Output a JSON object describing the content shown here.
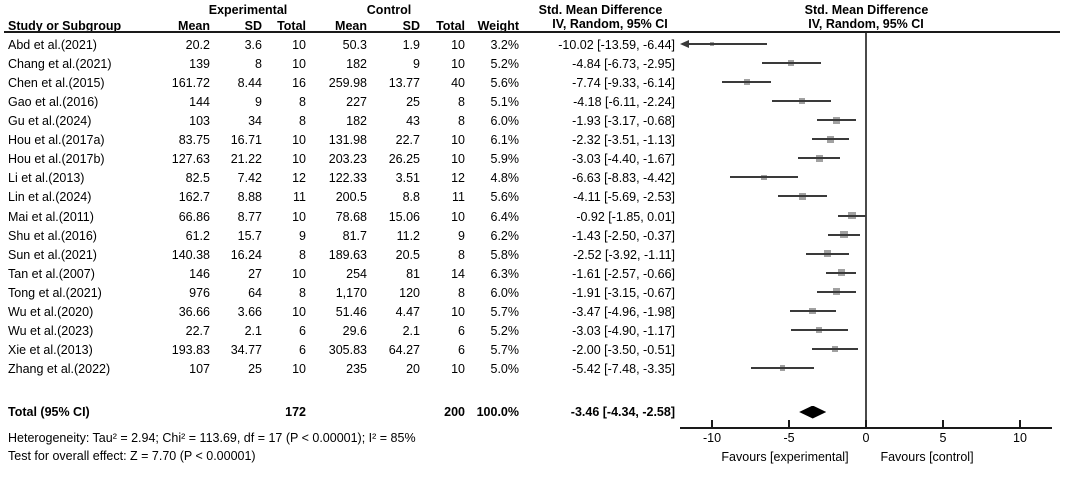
{
  "header": {
    "group_experimental": "Experimental",
    "group_control": "Control",
    "smd_text_col_title": "Std. Mean Difference",
    "smd_plot_col_title": "Std. Mean Difference",
    "smd_text_col_subtitle": "IV, Random, 95% CI",
    "smd_plot_col_subtitle": "IV, Random, 95% CI",
    "study_col": "Study or Subgroup",
    "mean_exp": "Mean",
    "sd_exp": "SD",
    "total_exp": "Total",
    "mean_ctrl": "Mean",
    "sd_ctrl": "SD",
    "total_ctrl": "Total",
    "weight_col": "Weight"
  },
  "chart_data": {
    "type": "forest",
    "title": "Std. Mean Difference, IV, Random, 95% CI",
    "studies": [
      {
        "name": "Abd et al.(2021)",
        "exp_mean": "20.2",
        "exp_sd": "3.6",
        "exp_total": "10",
        "ctrl_mean": "50.3",
        "ctrl_sd": "1.9",
        "ctrl_total": "10",
        "weight": "3.2%",
        "weight_pct": 3.2,
        "ci_label": "-10.02 [-13.59, -6.44]",
        "est": -10.02,
        "lo": -13.59,
        "hi": -6.44
      },
      {
        "name": "Chang et al.(2021)",
        "exp_mean": "139",
        "exp_sd": "8",
        "exp_total": "10",
        "ctrl_mean": "182",
        "ctrl_sd": "9",
        "ctrl_total": "10",
        "weight": "5.2%",
        "weight_pct": 5.2,
        "ci_label": "-4.84 [-6.73, -2.95]",
        "est": -4.84,
        "lo": -6.73,
        "hi": -2.95
      },
      {
        "name": "Chen et al.(2015)",
        "exp_mean": "161.72",
        "exp_sd": "8.44",
        "exp_total": "16",
        "ctrl_mean": "259.98",
        "ctrl_sd": "13.77",
        "ctrl_total": "40",
        "weight": "5.6%",
        "weight_pct": 5.6,
        "ci_label": "-7.74 [-9.33, -6.14]",
        "est": -7.74,
        "lo": -9.33,
        "hi": -6.14
      },
      {
        "name": "Gao et al.(2016)",
        "exp_mean": "144",
        "exp_sd": "9",
        "exp_total": "8",
        "ctrl_mean": "227",
        "ctrl_sd": "25",
        "ctrl_total": "8",
        "weight": "5.1%",
        "weight_pct": 5.1,
        "ci_label": "-4.18 [-6.11, -2.24]",
        "est": -4.18,
        "lo": -6.11,
        "hi": -2.24
      },
      {
        "name": "Gu et al.(2024)",
        "exp_mean": "103",
        "exp_sd": "34",
        "exp_total": "8",
        "ctrl_mean": "182",
        "ctrl_sd": "43",
        "ctrl_total": "8",
        "weight": "6.0%",
        "weight_pct": 6.0,
        "ci_label": "-1.93 [-3.17, -0.68]",
        "est": -1.93,
        "lo": -3.17,
        "hi": -0.68
      },
      {
        "name": "Hou et al.(2017a)",
        "exp_mean": "83.75",
        "exp_sd": "16.71",
        "exp_total": "10",
        "ctrl_mean": "131.98",
        "ctrl_sd": "22.7",
        "ctrl_total": "10",
        "weight": "6.1%",
        "weight_pct": 6.1,
        "ci_label": "-2.32 [-3.51, -1.13]",
        "est": -2.32,
        "lo": -3.51,
        "hi": -1.13
      },
      {
        "name": "Hou et al.(2017b)",
        "exp_mean": "127.63",
        "exp_sd": "21.22",
        "exp_total": "10",
        "ctrl_mean": "203.23",
        "ctrl_sd": "26.25",
        "ctrl_total": "10",
        "weight": "5.9%",
        "weight_pct": 5.9,
        "ci_label": "-3.03 [-4.40, -1.67]",
        "est": -3.03,
        "lo": -4.4,
        "hi": -1.67
      },
      {
        "name": "Li et al.(2013)",
        "exp_mean": "82.5",
        "exp_sd": "7.42",
        "exp_total": "12",
        "ctrl_mean": "122.33",
        "ctrl_sd": "3.51",
        "ctrl_total": "12",
        "weight": "4.8%",
        "weight_pct": 4.8,
        "ci_label": "-6.63 [-8.83, -4.42]",
        "est": -6.63,
        "lo": -8.83,
        "hi": -4.42
      },
      {
        "name": "Lin et al.(2024)",
        "exp_mean": "162.7",
        "exp_sd": "8.88",
        "exp_total": "11",
        "ctrl_mean": "200.5",
        "ctrl_sd": "8.8",
        "ctrl_total": "11",
        "weight": "5.6%",
        "weight_pct": 5.6,
        "ci_label": "-4.11 [-5.69, -2.53]",
        "est": -4.11,
        "lo": -5.69,
        "hi": -2.53
      },
      {
        "name": "Mai et al.(2011)",
        "exp_mean": "66.86",
        "exp_sd": "8.77",
        "exp_total": "10",
        "ctrl_mean": "78.68",
        "ctrl_sd": "15.06",
        "ctrl_total": "10",
        "weight": "6.4%",
        "weight_pct": 6.4,
        "ci_label": "-0.92 [-1.85, 0.01]",
        "est": -0.92,
        "lo": -1.85,
        "hi": 0.01
      },
      {
        "name": "Shu et al.(2016)",
        "exp_mean": "61.2",
        "exp_sd": "15.7",
        "exp_total": "9",
        "ctrl_mean": "81.7",
        "ctrl_sd": "11.2",
        "ctrl_total": "9",
        "weight": "6.2%",
        "weight_pct": 6.2,
        "ci_label": "-1.43 [-2.50, -0.37]",
        "est": -1.43,
        "lo": -2.5,
        "hi": -0.37
      },
      {
        "name": "Sun et al.(2021)",
        "exp_mean": "140.38",
        "exp_sd": "16.24",
        "exp_total": "8",
        "ctrl_mean": "189.63",
        "ctrl_sd": "20.5",
        "ctrl_total": "8",
        "weight": "5.8%",
        "weight_pct": 5.8,
        "ci_label": "-2.52 [-3.92, -1.11]",
        "est": -2.52,
        "lo": -3.92,
        "hi": -1.11
      },
      {
        "name": "Tan et al.(2007)",
        "exp_mean": "146",
        "exp_sd": "27",
        "exp_total": "10",
        "ctrl_mean": "254",
        "ctrl_sd": "81",
        "ctrl_total": "14",
        "weight": "6.3%",
        "weight_pct": 6.3,
        "ci_label": "-1.61 [-2.57, -0.66]",
        "est": -1.61,
        "lo": -2.57,
        "hi": -0.66
      },
      {
        "name": "Tong et al.(2021)",
        "exp_mean": "976",
        "exp_sd": "64",
        "exp_total": "8",
        "ctrl_mean": "1,170",
        "ctrl_sd": "120",
        "ctrl_total": "8",
        "weight": "6.0%",
        "weight_pct": 6.0,
        "ci_label": "-1.91 [-3.15, -0.67]",
        "est": -1.91,
        "lo": -3.15,
        "hi": -0.67
      },
      {
        "name": "Wu et al.(2020)",
        "exp_mean": "36.66",
        "exp_sd": "3.66",
        "exp_total": "10",
        "ctrl_mean": "51.46",
        "ctrl_sd": "4.47",
        "ctrl_total": "10",
        "weight": "5.7%",
        "weight_pct": 5.7,
        "ci_label": "-3.47 [-4.96, -1.98]",
        "est": -3.47,
        "lo": -4.96,
        "hi": -1.98
      },
      {
        "name": "Wu et al.(2023)",
        "exp_mean": "22.7",
        "exp_sd": "2.1",
        "exp_total": "6",
        "ctrl_mean": "29.6",
        "ctrl_sd": "2.1",
        "ctrl_total": "6",
        "weight": "5.2%",
        "weight_pct": 5.2,
        "ci_label": "-3.03 [-4.90, -1.17]",
        "est": -3.03,
        "lo": -4.9,
        "hi": -1.17
      },
      {
        "name": "Xie et al.(2013)",
        "exp_mean": "193.83",
        "exp_sd": "34.77",
        "exp_total": "6",
        "ctrl_mean": "305.83",
        "ctrl_sd": "64.27",
        "ctrl_total": "6",
        "weight": "5.7%",
        "weight_pct": 5.7,
        "ci_label": "-2.00 [-3.50, -0.51]",
        "est": -2.0,
        "lo": -3.5,
        "hi": -0.51
      },
      {
        "name": "Zhang et al.(2022)",
        "exp_mean": "107",
        "exp_sd": "25",
        "exp_total": "10",
        "ctrl_mean": "235",
        "ctrl_sd": "20",
        "ctrl_total": "10",
        "weight": "5.0%",
        "weight_pct": 5.0,
        "ci_label": "-5.42 [-7.48, -3.35]",
        "est": -5.42,
        "lo": -7.48,
        "hi": -3.35
      }
    ],
    "total": {
      "label": "Total (95% CI)",
      "exp_total": "172",
      "ctrl_total": "200",
      "weight": "100.0%",
      "ci_label": "-3.46 [-4.34, -2.58]",
      "est": -3.46,
      "lo": -4.34,
      "hi": -2.58
    },
    "heterogeneity_label": "Heterogeneity: Tau² = 2.94; Chi² = 113.69, df = 17 (P < 0.00001); I² = 85%",
    "overall_effect_label": "Test for overall effect: Z = 7.70 (P < 0.00001)",
    "axis": {
      "ticks": [
        -10,
        -5,
        0,
        5,
        10
      ],
      "min": -12,
      "max": 12,
      "favours_left": "Favours [experimental]",
      "favours_right": "Favours [control]"
    },
    "legend_position": "none",
    "grid": false
  },
  "colors": {
    "text": "#000000",
    "ci_line": "#3a3a3a",
    "marker": "#a1a1a1",
    "diamond": "#000000",
    "axis": "#1a1a1a"
  }
}
